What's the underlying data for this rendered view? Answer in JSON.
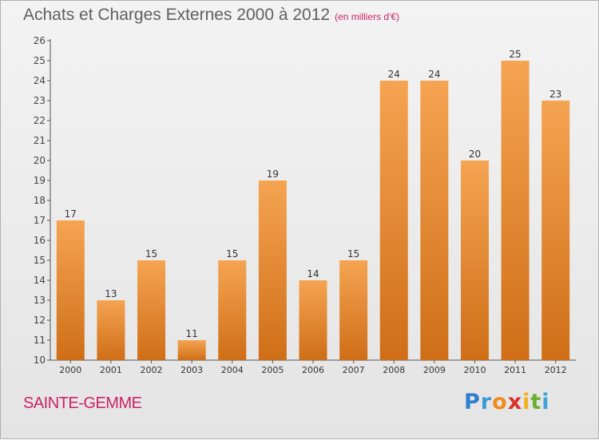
{
  "header": {
    "title": "Achats et Charges Externes 2000 à 2012",
    "unit": "(en milliers d'€)"
  },
  "footer": {
    "commune": "SAINTE-GEMME",
    "logo_letters": [
      {
        "char": "P",
        "color": "#2f7fd1"
      },
      {
        "char": "r",
        "color": "#3a9bd8"
      },
      {
        "char": "o",
        "color": "#f08a1c"
      },
      {
        "char": "x",
        "color": "#d9322b"
      },
      {
        "char": "i",
        "color": "#f2b01e"
      },
      {
        "char": "t",
        "color": "#6cae2f"
      },
      {
        "char": "i",
        "color": "#3fa2d9"
      }
    ]
  },
  "colors": {
    "bar_top": "#f5a452",
    "bar_bottom": "#cf6e17",
    "accent": "#cc2266"
  },
  "chart_data": {
    "type": "bar",
    "categories": [
      "2000",
      "2001",
      "2002",
      "2003",
      "2004",
      "2005",
      "2006",
      "2007",
      "2008",
      "2009",
      "2010",
      "2011",
      "2012"
    ],
    "values": [
      17,
      13,
      15,
      11,
      15,
      19,
      14,
      15,
      24,
      24,
      20,
      25,
      23
    ],
    "title": "Achats et Charges Externes 2000 à 2012",
    "ylim": [
      10,
      26
    ],
    "yticks": [
      10,
      11,
      12,
      13,
      14,
      15,
      16,
      17,
      18,
      19,
      20,
      21,
      22,
      23,
      24,
      25,
      26
    ],
    "grid": false
  }
}
